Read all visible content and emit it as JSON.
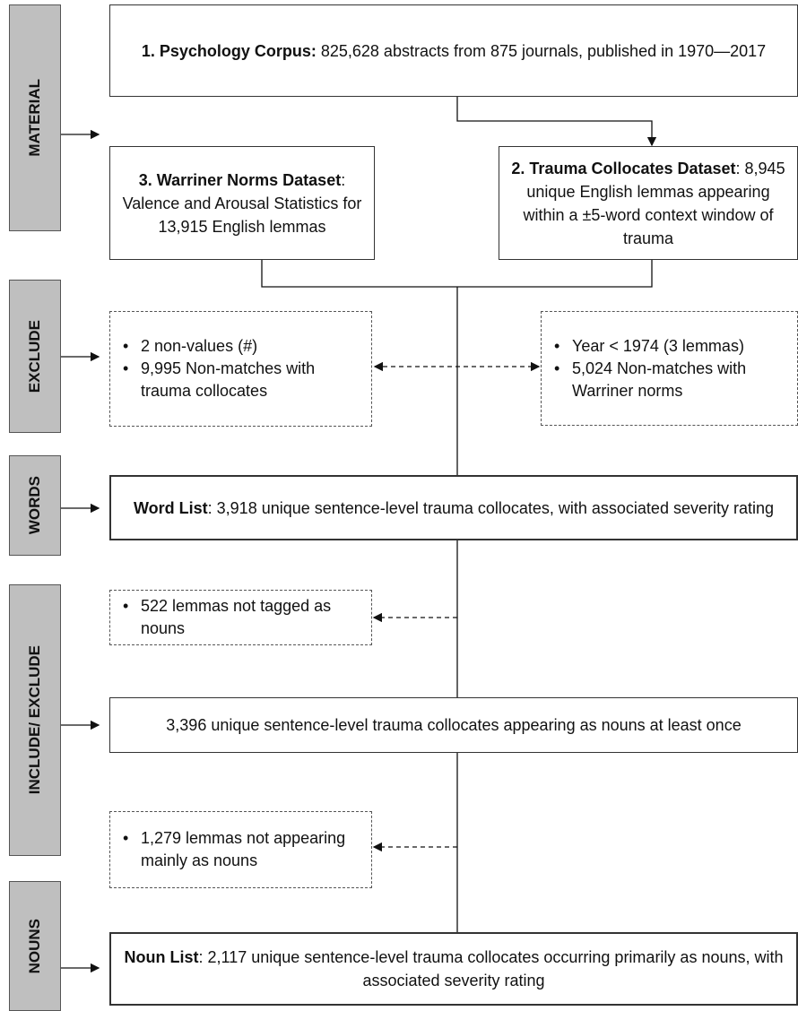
{
  "stages": [
    "MATERIAL",
    "EXCLUDE",
    "WORDS",
    "INCLUDE/ EXCLUDE",
    "NOUNS"
  ],
  "boxes": {
    "psychology_corpus": {
      "title": "1. Psychology Corpus:",
      "text": " 825,628 abstracts from 875 journals, published in 1970—2017"
    },
    "warriner_norms": {
      "title": "3. Warriner Norms Dataset",
      "text": ": Valence and Arousal Statistics for 13,915 English lemmas"
    },
    "trauma_collocates": {
      "title": "2. Trauma Collocates Dataset",
      "text": ": 8,945 unique English lemmas appearing within a ±5-word context window of trauma"
    },
    "word_list": {
      "title": "Word List",
      "text": ": 3,918 unique sentence-level trauma collocates, with associated severity rating"
    },
    "nouns_once": {
      "text": "3,396 unique sentence-level trauma collocates appearing as nouns at least once"
    },
    "noun_list": {
      "title": "Noun List",
      "text": ": 2,117 unique sentence-level trauma collocates occurring primarily as nouns, with associated severity rating"
    }
  },
  "exclusions": {
    "warriner": [
      "2 non-values (#)",
      "9,995 Non-matches with trauma collocates"
    ],
    "collocates": [
      "Year < 1974 (3 lemmas)",
      "5,024 Non-matches with Warriner norms"
    ],
    "not_nouns": [
      "522 lemmas not tagged as nouns"
    ],
    "not_mainly_nouns": [
      "1,279 lemmas not appearing mainly as nouns"
    ]
  }
}
